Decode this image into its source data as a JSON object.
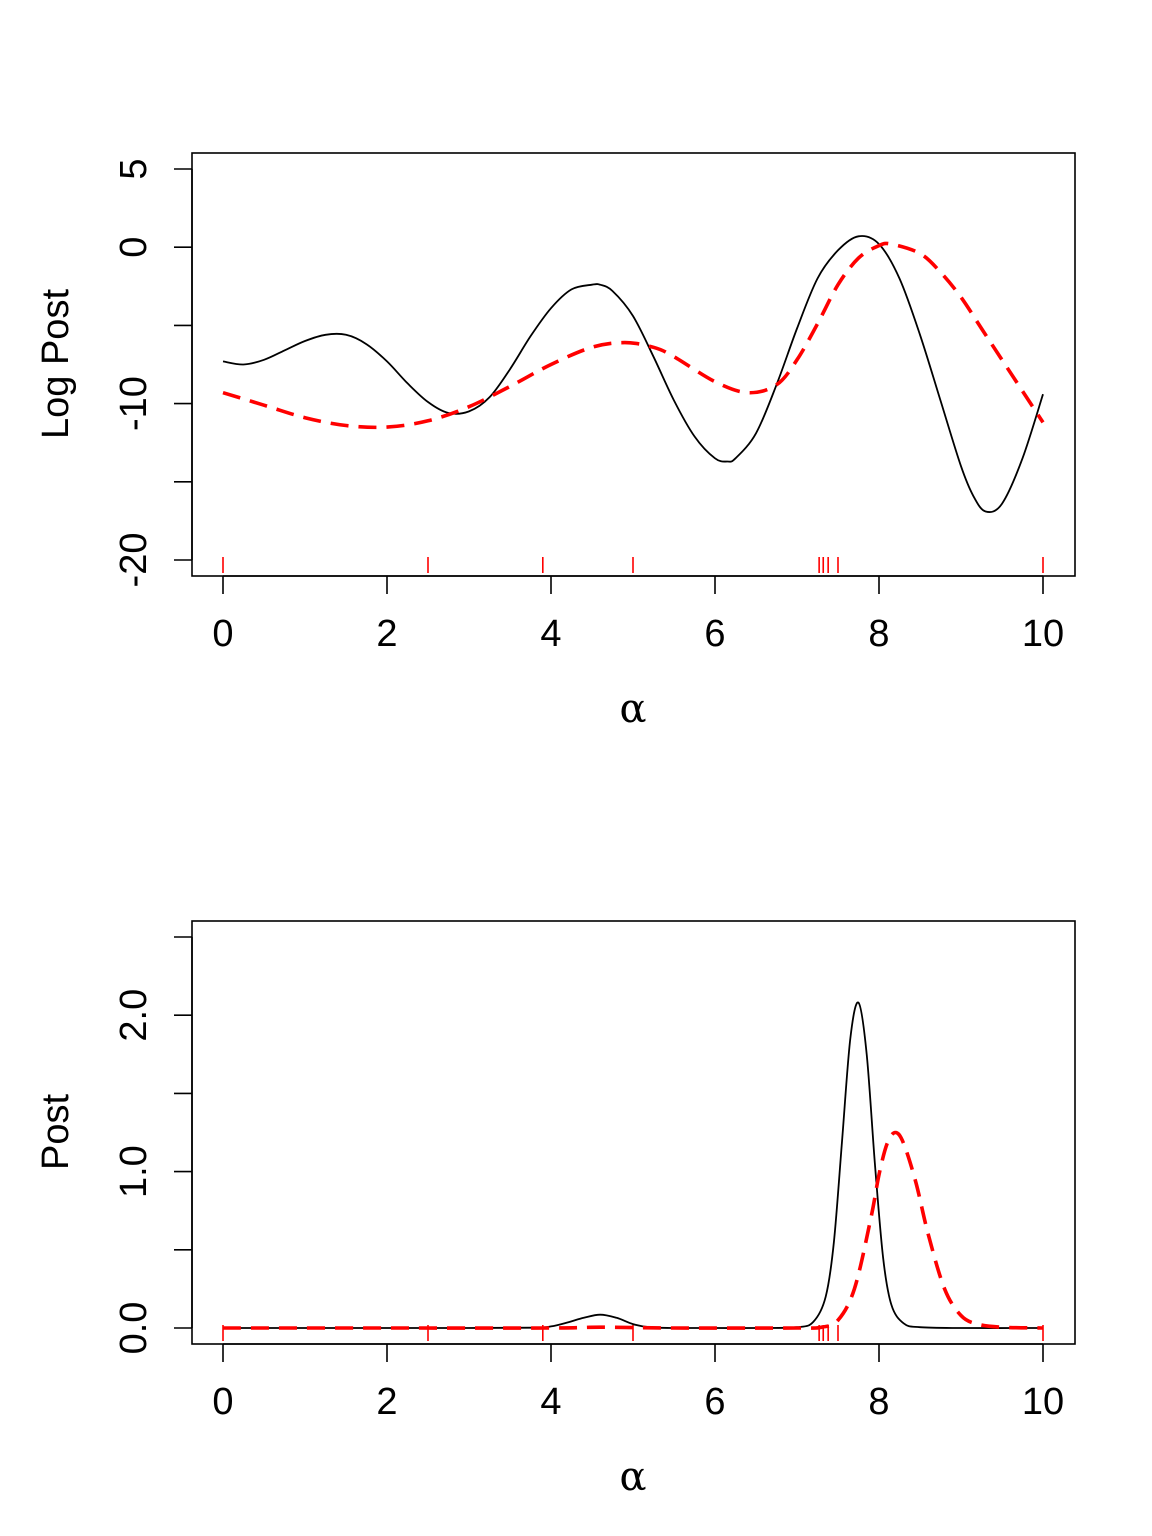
{
  "chart_data": [
    {
      "type": "line",
      "title": "",
      "xlabel": "α",
      "ylabel": "Log Post",
      "xlim": [
        0,
        10
      ],
      "ylim": [
        -20,
        5
      ],
      "x_ticks": [
        0,
        2,
        4,
        6,
        8,
        10
      ],
      "x_tick_labels": [
        "0",
        "2",
        "4",
        "6",
        "8",
        "10"
      ],
      "y_ticks": [
        -20,
        -15,
        -10,
        -5,
        0,
        5
      ],
      "y_tick_labels": [
        "-20",
        "",
        "-10",
        "",
        "0",
        "5"
      ],
      "grid": false,
      "rug": {
        "color": "#ff0000",
        "x": [
          0,
          2.5,
          3.9,
          5.0,
          7.27,
          7.32,
          7.38,
          7.5,
          10
        ]
      },
      "series": [
        {
          "style": "solid",
          "color": "#000000",
          "x": [
            0,
            0.25,
            0.5,
            0.75,
            1.0,
            1.25,
            1.5,
            1.75,
            2.0,
            2.25,
            2.5,
            2.75,
            3.0,
            3.25,
            3.5,
            3.75,
            4.0,
            4.25,
            4.5,
            4.6,
            4.75,
            5.0,
            5.25,
            5.5,
            5.75,
            6.0,
            6.15,
            6.25,
            6.5,
            6.75,
            7.0,
            7.25,
            7.5,
            7.75,
            8.0,
            8.25,
            8.5,
            8.75,
            9.0,
            9.15,
            9.3,
            9.5,
            9.75,
            10.0
          ],
          "y": [
            -7.3,
            -7.5,
            -7.2,
            -6.6,
            -6.0,
            -5.6,
            -5.6,
            -6.2,
            -7.3,
            -8.7,
            -9.9,
            -10.6,
            -10.5,
            -9.6,
            -7.8,
            -5.7,
            -3.9,
            -2.7,
            -2.4,
            -2.4,
            -2.8,
            -4.4,
            -7.0,
            -9.8,
            -12.1,
            -13.5,
            -13.7,
            -13.5,
            -11.9,
            -8.8,
            -5.2,
            -2.0,
            -0.2,
            0.7,
            0.2,
            -2.0,
            -5.6,
            -9.8,
            -14.0,
            -15.9,
            -16.9,
            -16.4,
            -13.5,
            -9.4
          ]
        },
        {
          "style": "dashed",
          "color": "#ff0000",
          "x": [
            0,
            0.5,
            1.0,
            1.5,
            2.0,
            2.5,
            3.0,
            3.5,
            4.0,
            4.5,
            4.9,
            5.25,
            5.5,
            6.0,
            6.4,
            6.75,
            7.0,
            7.25,
            7.5,
            7.75,
            8.0,
            8.15,
            8.5,
            8.75,
            9.0,
            9.25,
            9.5,
            9.75,
            10.0
          ],
          "y": [
            -9.3,
            -10.1,
            -10.9,
            -11.4,
            -11.5,
            -11.1,
            -10.2,
            -8.9,
            -7.5,
            -6.4,
            -6.1,
            -6.4,
            -7.0,
            -8.6,
            -9.3,
            -8.8,
            -7.2,
            -4.9,
            -2.4,
            -0.7,
            0.1,
            0.2,
            -0.4,
            -1.6,
            -3.2,
            -5.2,
            -7.2,
            -9.2,
            -11.2
          ]
        }
      ]
    },
    {
      "type": "line",
      "title": "",
      "xlabel": "α",
      "ylabel": "Post",
      "xlim": [
        0,
        10
      ],
      "ylim": [
        0,
        2.5
      ],
      "x_ticks": [
        0,
        2,
        4,
        6,
        8,
        10
      ],
      "x_tick_labels": [
        "0",
        "2",
        "4",
        "6",
        "8",
        "10"
      ],
      "y_ticks": [
        0,
        0.5,
        1.0,
        1.5,
        2.0,
        2.5
      ],
      "y_tick_labels": [
        "0.0",
        "",
        "1.0",
        "",
        "2.0",
        ""
      ],
      "grid": false,
      "rug": {
        "color": "#ff0000",
        "x": [
          0,
          2.5,
          3.9,
          5.0,
          7.27,
          7.32,
          7.38,
          7.5,
          10
        ]
      },
      "series": [
        {
          "style": "solid",
          "color": "#000000",
          "x": [
            0,
            1,
            2,
            3,
            3.8,
            4.0,
            4.2,
            4.4,
            4.6,
            4.8,
            5.0,
            5.2,
            5.5,
            6,
            6.5,
            7.0,
            7.2,
            7.35,
            7.45,
            7.55,
            7.65,
            7.75,
            7.85,
            7.95,
            8.05,
            8.15,
            8.3,
            8.5,
            9,
            10
          ],
          "y": [
            0,
            0,
            0,
            0,
            0.002,
            0.01,
            0.035,
            0.065,
            0.085,
            0.065,
            0.025,
            0.005,
            0,
            0,
            0,
            0.005,
            0.04,
            0.2,
            0.55,
            1.2,
            1.85,
            2.08,
            1.75,
            1.05,
            0.45,
            0.15,
            0.03,
            0.005,
            0,
            0
          ]
        },
        {
          "style": "dashed",
          "color": "#ff0000",
          "x": [
            0,
            2,
            4,
            4.6,
            5.5,
            7.0,
            7.3,
            7.5,
            7.7,
            7.9,
            8.0,
            8.1,
            8.2,
            8.3,
            8.45,
            8.6,
            8.8,
            9.0,
            9.2,
            9.5,
            10
          ],
          "y": [
            0,
            0,
            0,
            0.005,
            0,
            0,
            0.005,
            0.05,
            0.25,
            0.7,
            0.98,
            1.18,
            1.25,
            1.18,
            0.93,
            0.6,
            0.25,
            0.08,
            0.025,
            0.005,
            0
          ]
        }
      ]
    }
  ]
}
